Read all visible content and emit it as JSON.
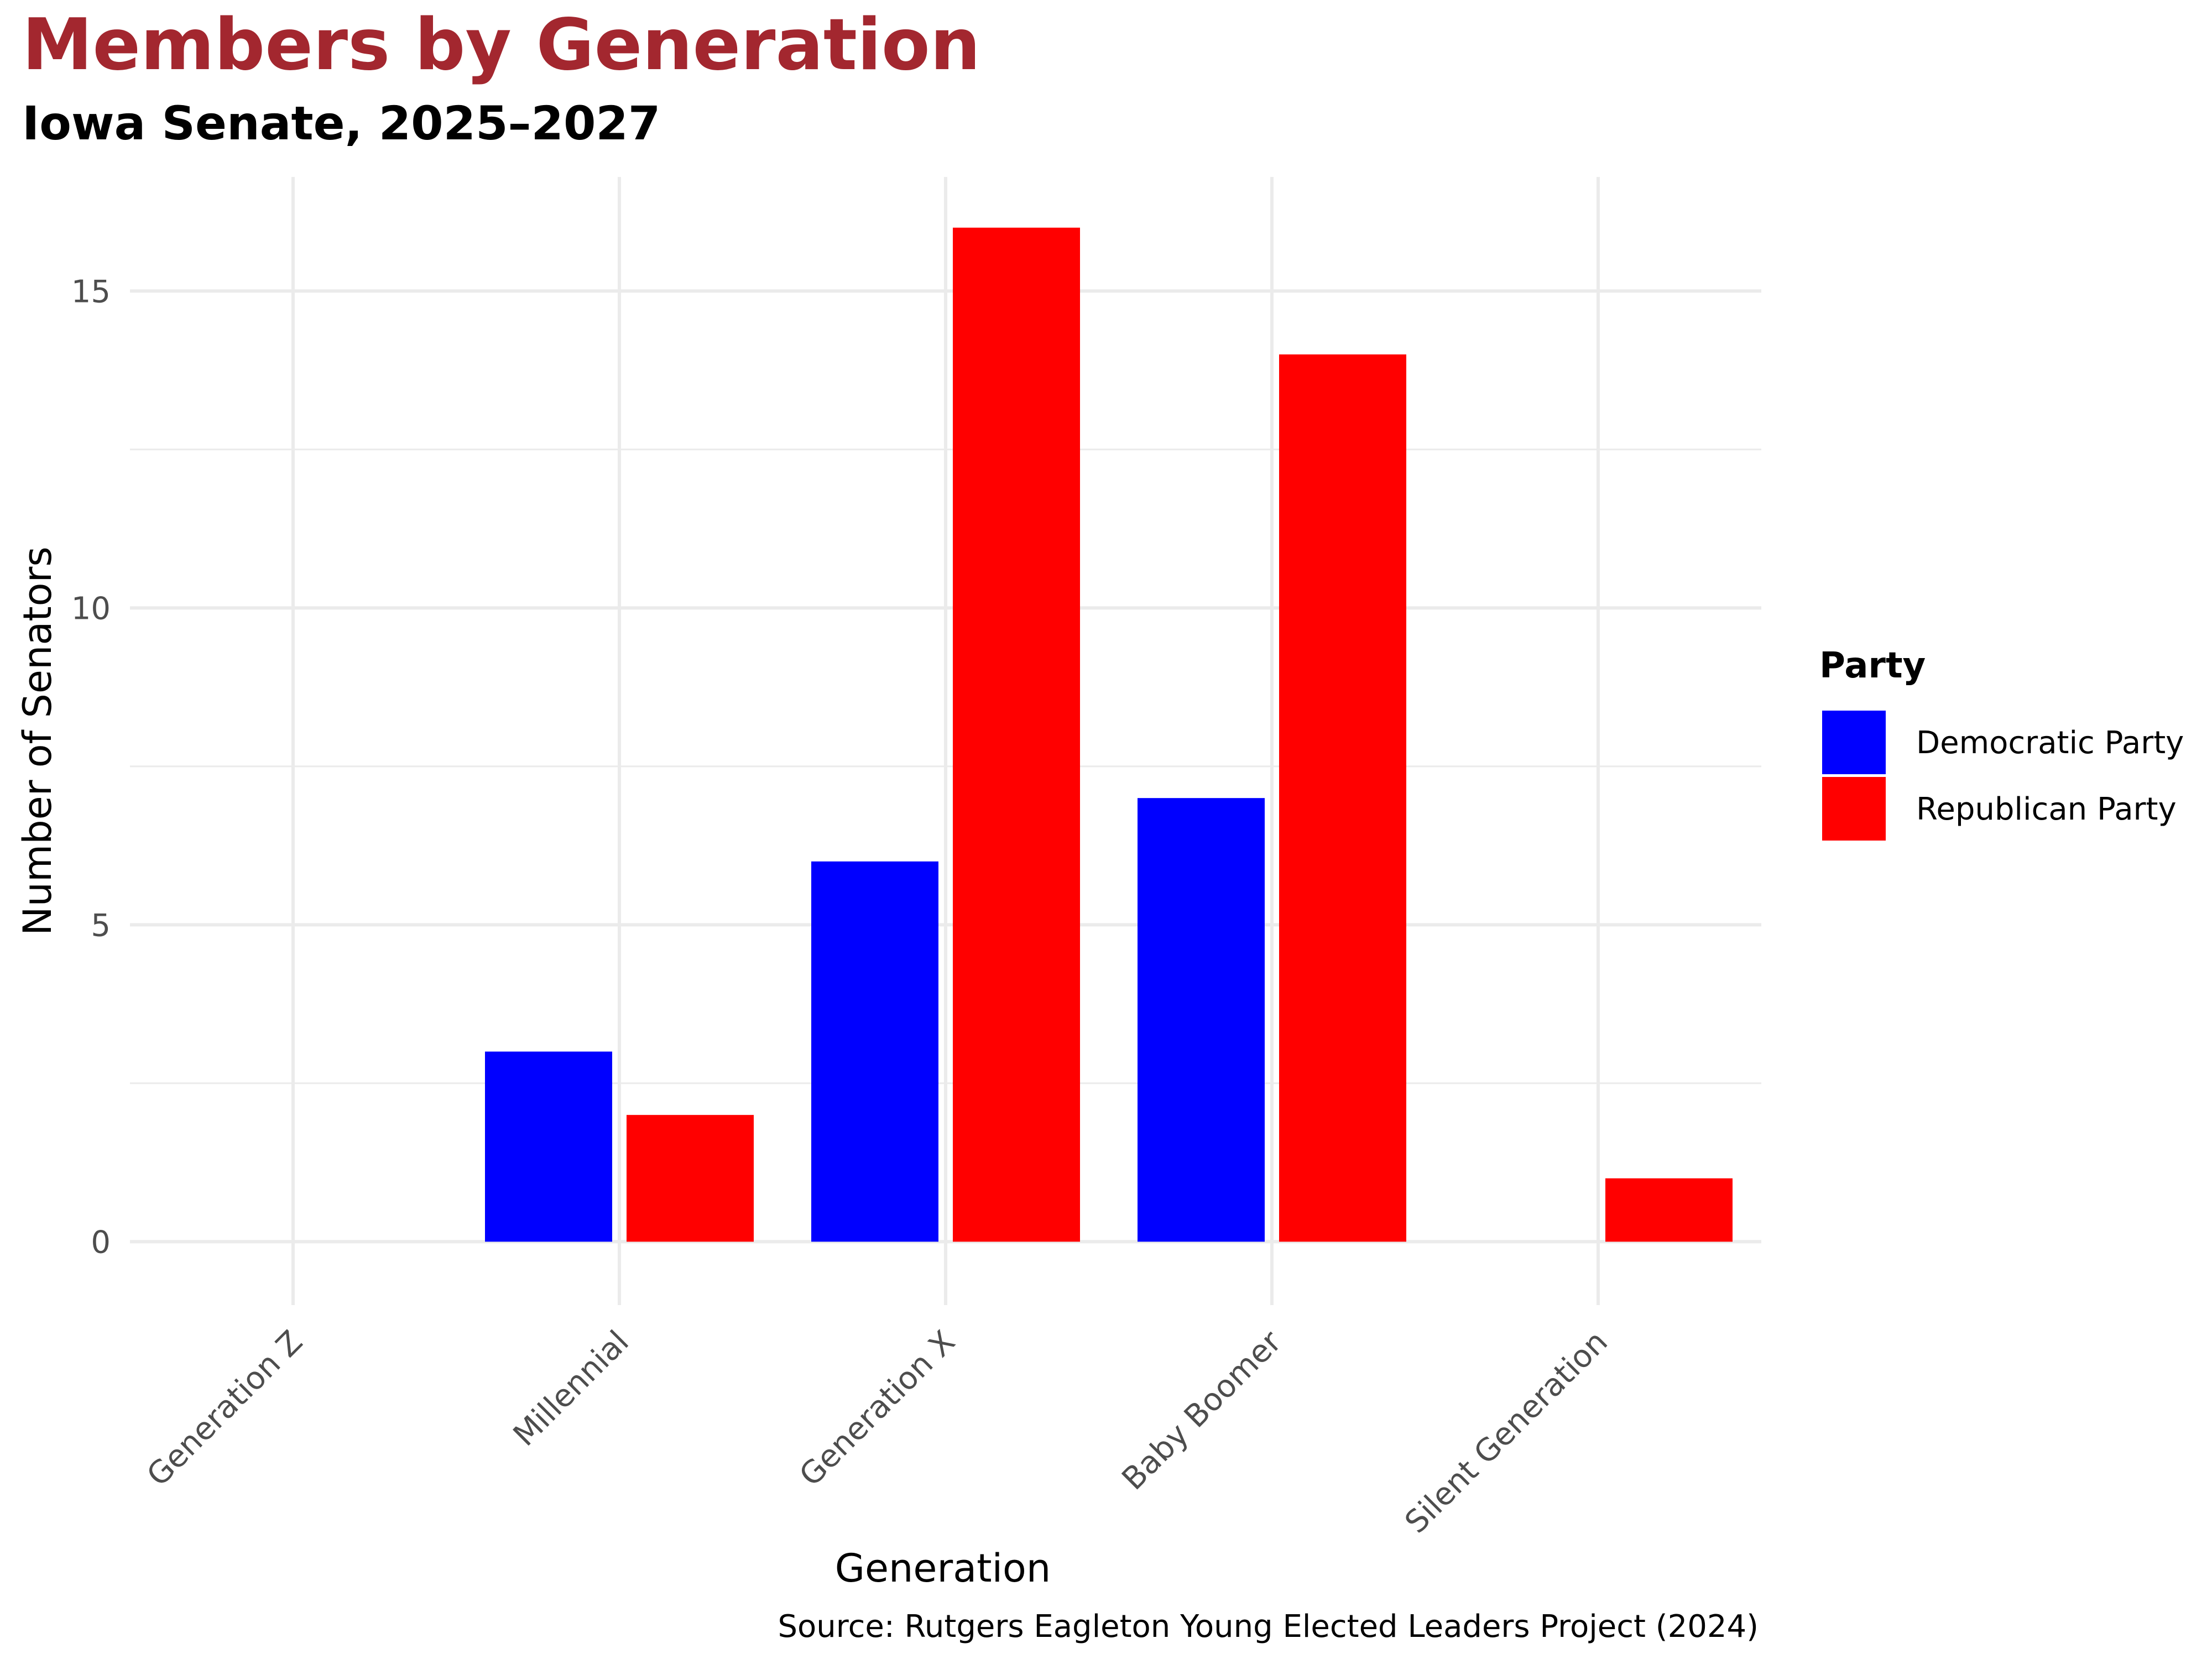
{
  "chart_data": {
    "type": "bar",
    "title": "Members by Generation",
    "subtitle": "Iowa Senate, 2025–2027",
    "xlabel": "Generation",
    "ylabel": "Number of Senators",
    "caption": "Source: Rutgers Eagleton Young Elected Leaders Project (2024)",
    "categories": [
      "Generation Z",
      "Millennial",
      "Generation X",
      "Baby Boomer",
      "Silent Generation"
    ],
    "series": [
      {
        "name": "Democratic Party",
        "color": "#0000FF",
        "values": [
          0,
          3,
          6,
          7,
          0
        ]
      },
      {
        "name": "Republican Party",
        "color": "#FF0000",
        "values": [
          0,
          2,
          16,
          14,
          1
        ]
      }
    ],
    "ylim": [
      -1,
      16.8
    ],
    "yticks": [
      0,
      5,
      10,
      15
    ],
    "grid": true,
    "legend": {
      "title": "Party",
      "position": "right"
    },
    "colors": {
      "title": "#A3272F"
    }
  }
}
